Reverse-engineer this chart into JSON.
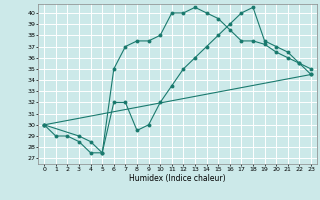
{
  "xlabel": "Humidex (Indice chaleur)",
  "xlim": [
    -0.5,
    23.5
  ],
  "ylim": [
    26.5,
    40.8
  ],
  "yticks": [
    27,
    28,
    29,
    30,
    31,
    32,
    33,
    34,
    35,
    36,
    37,
    38,
    39,
    40
  ],
  "xticks": [
    0,
    1,
    2,
    3,
    4,
    5,
    6,
    7,
    8,
    9,
    10,
    11,
    12,
    13,
    14,
    15,
    16,
    17,
    18,
    19,
    20,
    21,
    22,
    23
  ],
  "bg_color": "#cce9e9",
  "grid_color": "#ffffff",
  "line_color": "#1a7a6e",
  "line1_x": [
    0,
    1,
    2,
    3,
    4,
    5,
    6,
    7,
    8,
    9,
    10,
    11,
    12,
    13,
    14,
    15,
    16,
    17,
    18,
    19,
    20,
    21,
    22,
    23
  ],
  "line1_y": [
    30.0,
    29.0,
    29.0,
    28.5,
    27.5,
    27.5,
    35.0,
    37.0,
    37.5,
    37.5,
    38.0,
    40.0,
    40.0,
    40.5,
    40.0,
    39.5,
    38.5,
    37.5,
    37.5,
    37.2,
    36.5,
    36.0,
    35.5,
    35.0
  ],
  "line2_x": [
    0,
    3,
    4,
    5,
    6,
    7,
    8,
    9,
    10,
    11,
    12,
    13,
    14,
    15,
    16,
    17,
    18,
    19,
    20,
    21,
    22,
    23
  ],
  "line2_y": [
    30.0,
    29.0,
    28.5,
    27.5,
    32.0,
    32.0,
    29.5,
    30.0,
    32.0,
    33.5,
    35.0,
    36.0,
    37.0,
    38.0,
    39.0,
    40.0,
    40.5,
    37.5,
    37.0,
    36.5,
    35.5,
    34.5
  ],
  "line3_x": [
    0,
    23
  ],
  "line3_y": [
    30.0,
    34.5
  ]
}
